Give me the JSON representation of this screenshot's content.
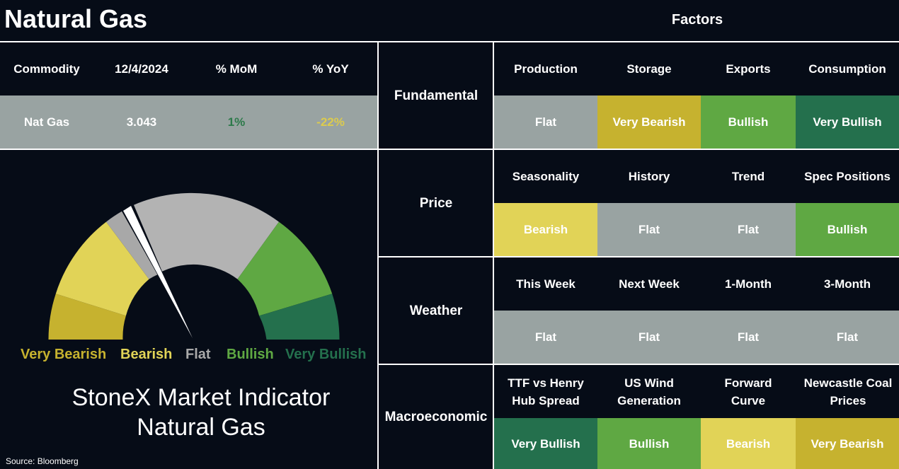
{
  "header": {
    "title": "Natural Gas",
    "factors_title": "Factors"
  },
  "colors": {
    "background": "#060c17",
    "flat": "#99a3a2",
    "very_bearish": "#c6b22f",
    "bearish": "#e1d357",
    "bullish": "#5fa843",
    "very_bullish": "#24704d",
    "mom_text": "#2d7a4a",
    "yoy_text": "#dccb4d"
  },
  "commodity_table": {
    "headers": [
      "Commodity",
      "12/4/2024",
      "% MoM",
      "% YoY"
    ],
    "row": [
      "Nat Gas",
      "3.043",
      "1%",
      "-22%"
    ]
  },
  "gauge": {
    "labels": [
      "Very Bearish",
      "Bearish",
      "Flat",
      "Bullish",
      "Very Bullish"
    ],
    "reading": "Flat",
    "title_line1": "StoneX Market Indicator",
    "title_line2": "Natural Gas"
  },
  "source": "Source: Bloomberg",
  "factors": [
    {
      "category": "Fundamental",
      "items": [
        {
          "label": "Production",
          "value": "Flat",
          "sentiment": "flat"
        },
        {
          "label": "Storage",
          "value": "Very Bearish",
          "sentiment": "very_bearish"
        },
        {
          "label": "Exports",
          "value": "Bullish",
          "sentiment": "bullish"
        },
        {
          "label": "Consumption",
          "value": "Very Bullish",
          "sentiment": "very_bullish"
        }
      ]
    },
    {
      "category": "Price",
      "items": [
        {
          "label": "Seasonality",
          "value": "Bearish",
          "sentiment": "bearish"
        },
        {
          "label": "History",
          "value": "Flat",
          "sentiment": "flat"
        },
        {
          "label": "Trend",
          "value": "Flat",
          "sentiment": "flat"
        },
        {
          "label": "Spec Positions",
          "value": "Bullish",
          "sentiment": "bullish"
        }
      ]
    },
    {
      "category": "Weather",
      "items": [
        {
          "label": "This Week",
          "value": "Flat",
          "sentiment": "flat"
        },
        {
          "label": "Next Week",
          "value": "Flat",
          "sentiment": "flat"
        },
        {
          "label": "1-Month",
          "value": "Flat",
          "sentiment": "flat"
        },
        {
          "label": "3-Month",
          "value": "Flat",
          "sentiment": "flat"
        }
      ]
    },
    {
      "category": "Macroeconomic",
      "items": [
        {
          "label": "TTF vs Henry Hub Spread",
          "value": "Very Bullish",
          "sentiment": "very_bullish"
        },
        {
          "label": "US Wind Generation",
          "value": "Bullish",
          "sentiment": "bullish"
        },
        {
          "label": "Forward Curve",
          "value": "Bearish",
          "sentiment": "bearish"
        },
        {
          "label": "Newcastle Coal Prices",
          "value": "Very Bearish",
          "sentiment": "very_bearish"
        }
      ]
    }
  ]
}
